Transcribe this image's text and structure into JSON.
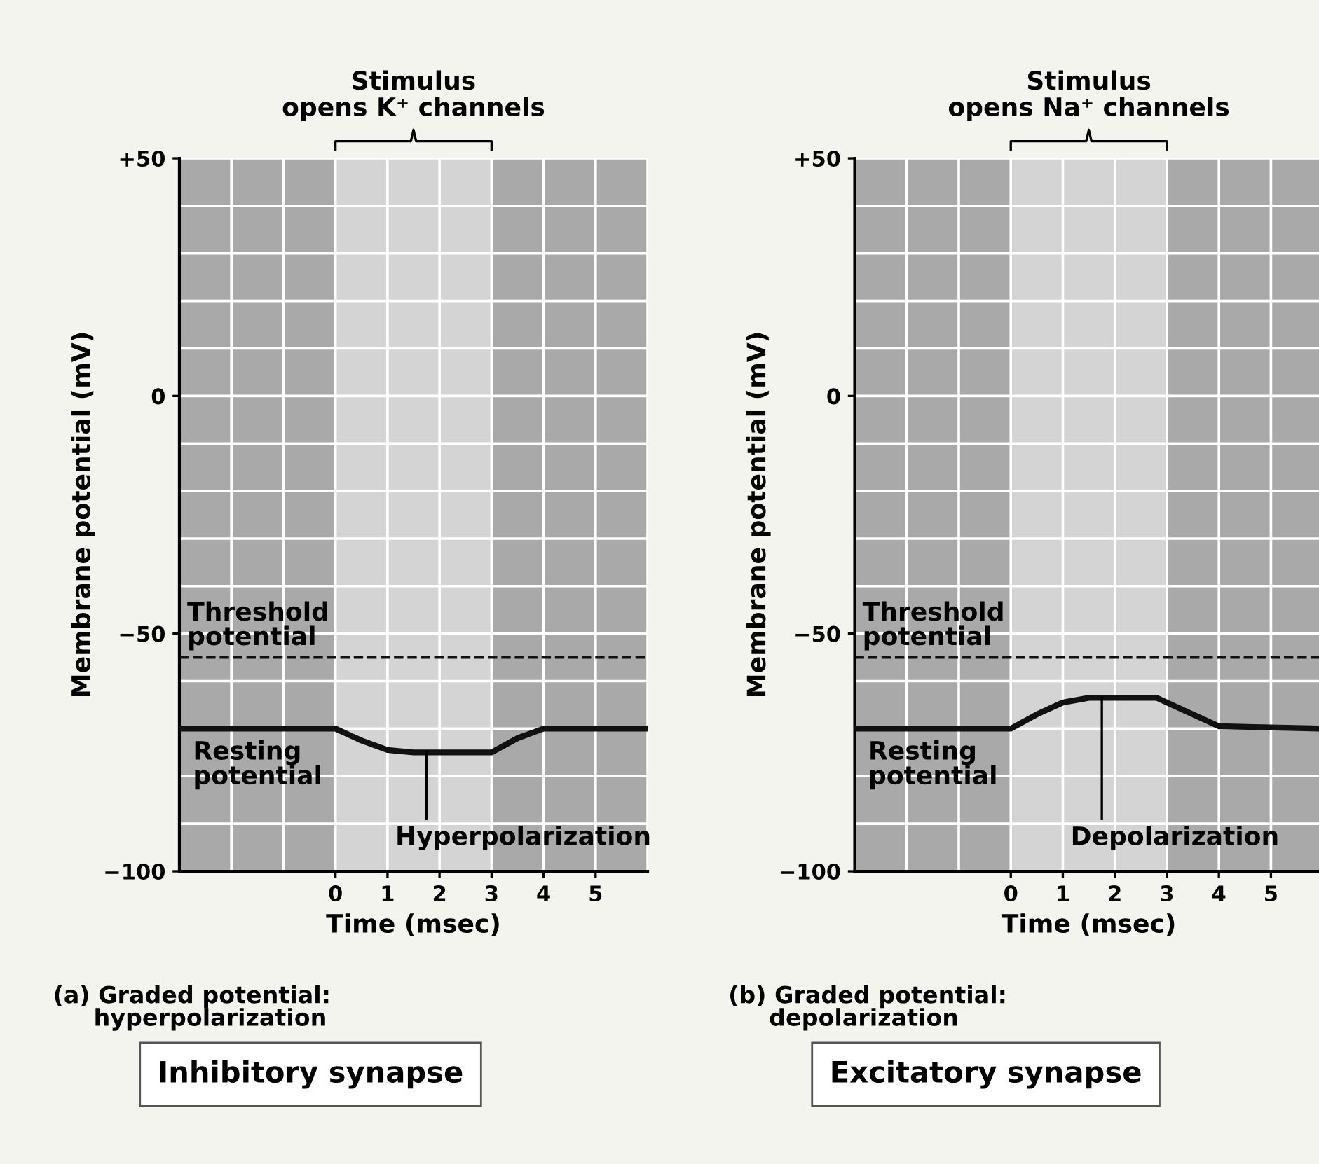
{
  "chart_data": [
    {
      "type": "line",
      "xlabel": "Time (msec)",
      "ylabel": "Membrane potential (mV)",
      "xlim": [
        -3,
        6
      ],
      "ylim": [
        -100,
        50
      ],
      "xticks": [
        0,
        1,
        2,
        3,
        4,
        5
      ],
      "yticks": [
        {
          "value": 50,
          "label": "+50"
        },
        0,
        {
          "value": -50,
          "label": "−50"
        },
        {
          "value": -100,
          "label": "−100"
        }
      ],
      "grid": true,
      "series": [
        {
          "color": "#111111",
          "x": [
            -3,
            0,
            0.5,
            1,
            1.5,
            3,
            3.5,
            4,
            6
          ],
          "values": [
            -70,
            -70,
            -72.5,
            -74.5,
            -75,
            -75,
            -72,
            -70,
            -70
          ]
        }
      ],
      "ref_lines": [
        {
          "axis": "y",
          "value": -55,
          "label": "Threshold\npotential",
          "color": "#111111",
          "line_style": "dashed"
        }
      ],
      "bands": [
        {
          "axis": "x",
          "from": 0,
          "to": 3,
          "label": "Stimulus\nopens K⁺ channels",
          "color": "#d4d4d4"
        }
      ],
      "annotations": [
        "Resting\npotential",
        {
          "text": "Hyperpolarization",
          "x": 1.75,
          "y": -75
        },
        "(a) Graded potential:\n     hyperpolarization",
        "Inhibitory synapse"
      ]
    },
    {
      "type": "line",
      "xlabel": "Time (msec)",
      "ylabel": "Membrane potential (mV)",
      "xlim": [
        -3,
        6
      ],
      "ylim": [
        -100,
        50
      ],
      "xticks": [
        0,
        1,
        2,
        3,
        4,
        5
      ],
      "yticks": [
        {
          "value": 50,
          "label": "+50"
        },
        0,
        {
          "value": -50,
          "label": "−50"
        },
        {
          "value": -100,
          "label": "−100"
        }
      ],
      "grid": true,
      "series": [
        {
          "color": "#111111",
          "x": [
            -3,
            0,
            0.5,
            1,
            1.5,
            2.8,
            3.3,
            4,
            6
          ],
          "values": [
            -70,
            -70,
            -67,
            -64.5,
            -63.5,
            -63.5,
            -66,
            -69.5,
            -70
          ]
        }
      ],
      "ref_lines": [
        {
          "axis": "y",
          "value": -55,
          "label": "Threshold\npotential",
          "color": "#111111",
          "line_style": "dashed"
        }
      ],
      "bands": [
        {
          "axis": "x",
          "from": 0,
          "to": 3,
          "label": "Stimulus\nopens Na⁺ channels",
          "color": "#d4d4d4"
        }
      ],
      "annotations": [
        "Resting\npotential",
        {
          "text": "Depolarization",
          "x": 1.75,
          "y": -63.5
        },
        "(b) Graded potential:\n     depolarization",
        "Excitatory synapse"
      ]
    }
  ]
}
